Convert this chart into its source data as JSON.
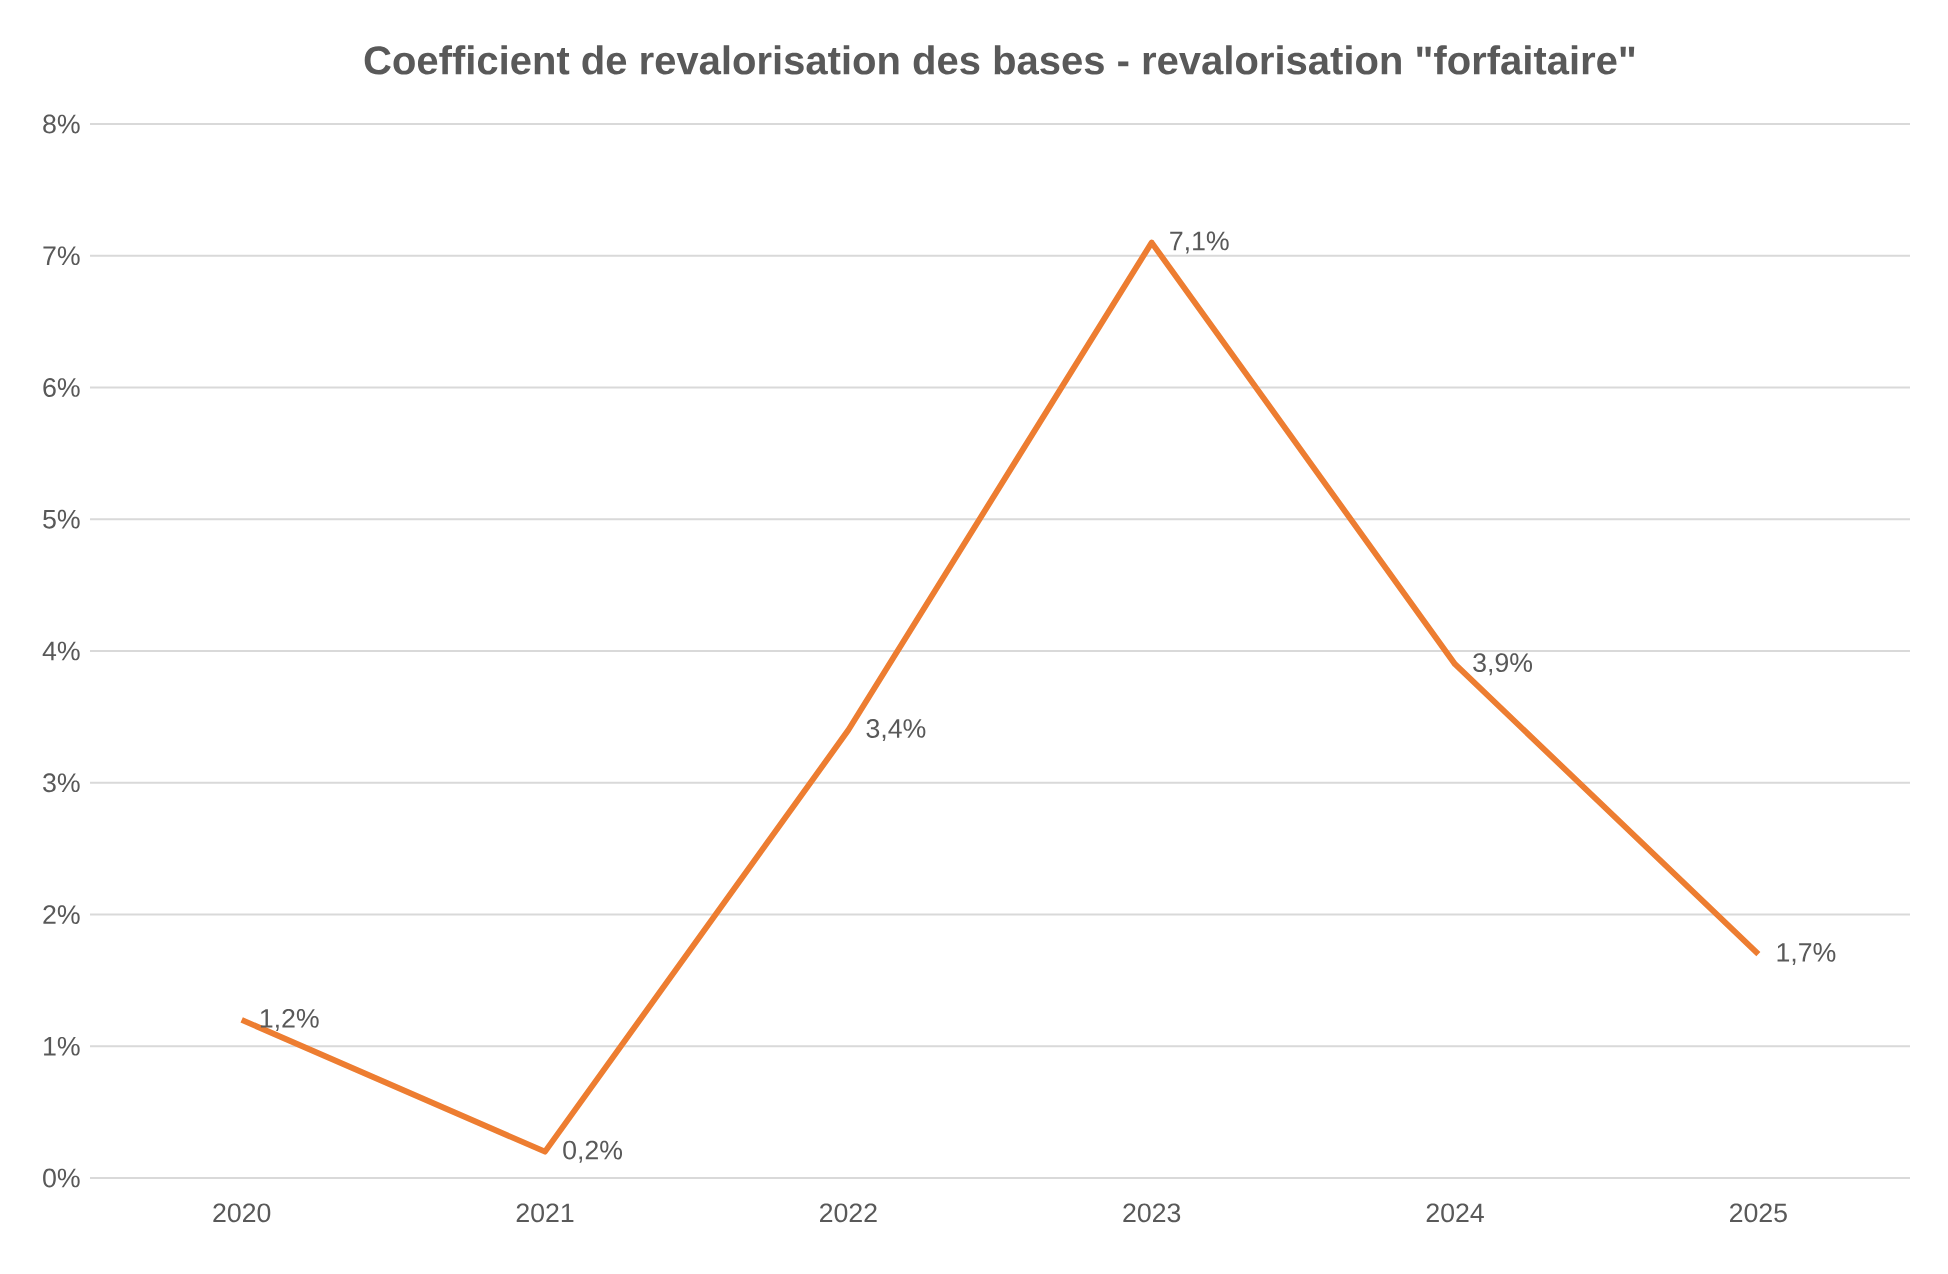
{
  "chart_data": {
    "type": "line",
    "title": "Coefficient de revalorisation des bases - revalorisation \"forfaitaire\"",
    "categories": [
      "2020",
      "2021",
      "2022",
      "2023",
      "2024",
      "2025"
    ],
    "series": [
      {
        "color": "#ed7d31",
        "values": [
          1.2,
          0.2,
          3.4,
          7.1,
          3.9,
          1.7
        ],
        "value_labels": [
          "1,2%",
          "0,2%",
          "3,4%",
          "7,1%",
          "3,9%",
          "1,7%"
        ]
      }
    ],
    "ylim": [
      0,
      8
    ],
    "yticks": [
      {
        "value": 0,
        "label": "0%"
      },
      {
        "value": 1,
        "label": "1%"
      },
      {
        "value": 2,
        "label": "2%"
      },
      {
        "value": 3,
        "label": "3%"
      },
      {
        "value": 4,
        "label": "4%"
      },
      {
        "value": 5,
        "label": "5%"
      },
      {
        "value": 6,
        "label": "6%"
      },
      {
        "value": 7,
        "label": "7%"
      },
      {
        "value": 8,
        "label": "8%"
      }
    ],
    "grid": "y",
    "legend": false,
    "marker": "none",
    "line_style": "solid"
  }
}
